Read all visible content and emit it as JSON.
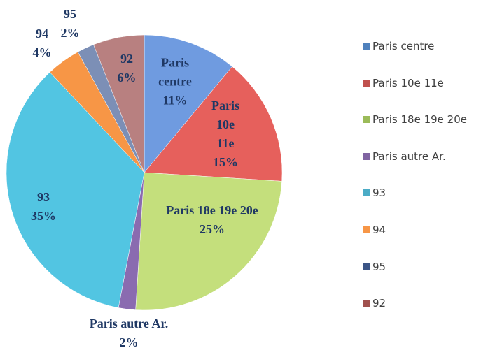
{
  "chart_data": {
    "type": "pie",
    "categories": [
      "Paris centre",
      "Paris 10e 11e",
      "Paris 18e 19e 20e",
      "Paris autre Ar.",
      "93",
      "94",
      "95",
      "92"
    ],
    "values": [
      11,
      15,
      25,
      2,
      35,
      4,
      2,
      6
    ],
    "value_labels": [
      "11%",
      "15%",
      "25%",
      "2%",
      "35%",
      "4%",
      "2%",
      "6%"
    ],
    "colors": [
      "#6f9be0",
      "#e6605c",
      "#c4df7c",
      "#8a6bb0",
      "#52c5e2",
      "#f79646",
      "#7c8fb6",
      "#b88080"
    ],
    "legend_colors": [
      "#4f81bd",
      "#c0504d",
      "#9bbb59",
      "#8064a2",
      "#4bacc6",
      "#f79646",
      "#3b5586",
      "#a0504d"
    ],
    "legend": "right"
  }
}
